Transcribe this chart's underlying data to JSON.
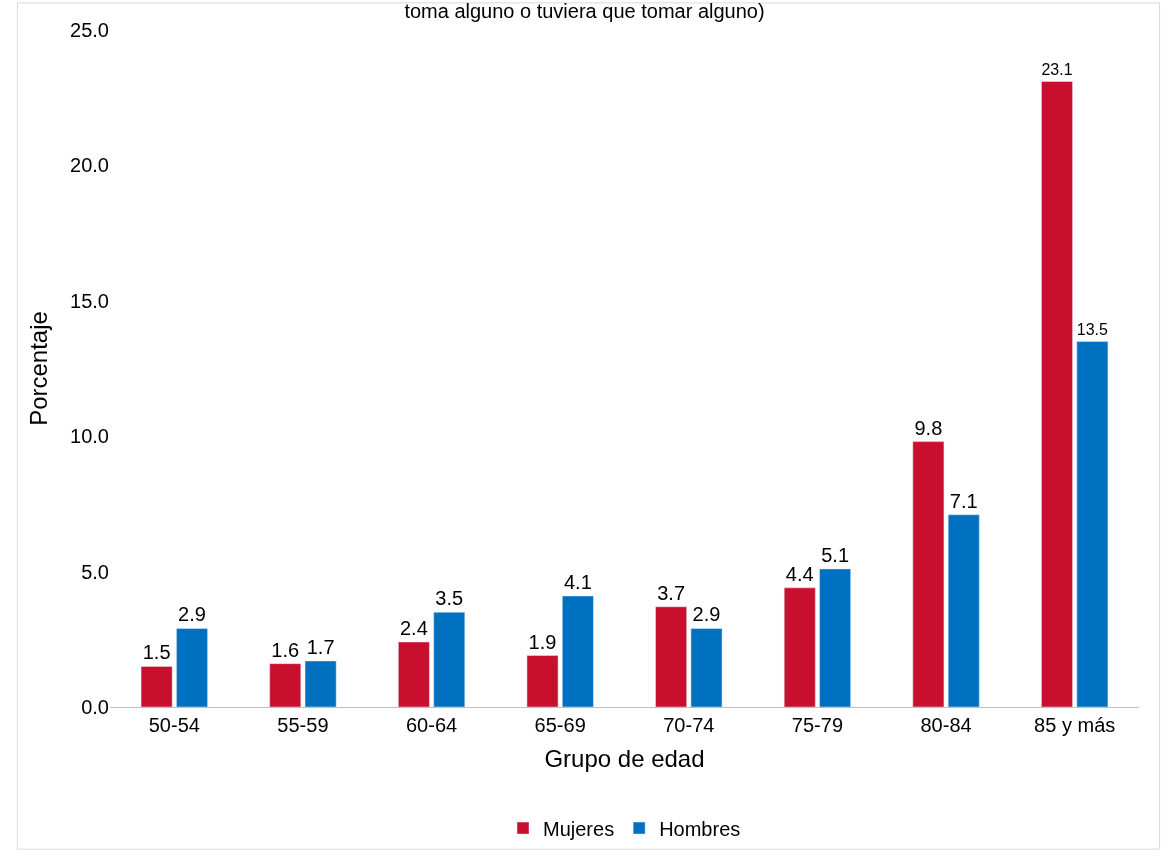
{
  "chart_data": {
    "type": "bar",
    "title": "toma alguno o tuviera que tomar alguno)",
    "xlabel": "Grupo de edad",
    "ylabel": "Porcentaje",
    "categories": [
      "50-54",
      "55-59",
      "60-64",
      "65-69",
      "70-74",
      "75-79",
      "80-84",
      "85 y más"
    ],
    "series": [
      {
        "name": "Mujeres",
        "color": "#c8102e",
        "values": [
          1.5,
          1.6,
          2.4,
          1.9,
          3.7,
          4.4,
          9.8,
          23.1
        ]
      },
      {
        "name": "Hombres",
        "color": "#0070c0",
        "values": [
          2.9,
          1.7,
          3.5,
          4.1,
          2.9,
          5.1,
          7.1,
          13.5
        ]
      }
    ],
    "ylim": [
      0,
      25
    ],
    "yticks": [
      {
        "value": 0,
        "label": "0.0"
      },
      {
        "value": 5,
        "label": "5.0"
      },
      {
        "value": 10,
        "label": "10.0"
      },
      {
        "value": 15,
        "label": "15.0"
      },
      {
        "value": 20,
        "label": "20.0"
      },
      {
        "value": 25,
        "label": "25.0"
      }
    ],
    "data_labels": true,
    "legend": "bottom",
    "grid": false
  }
}
